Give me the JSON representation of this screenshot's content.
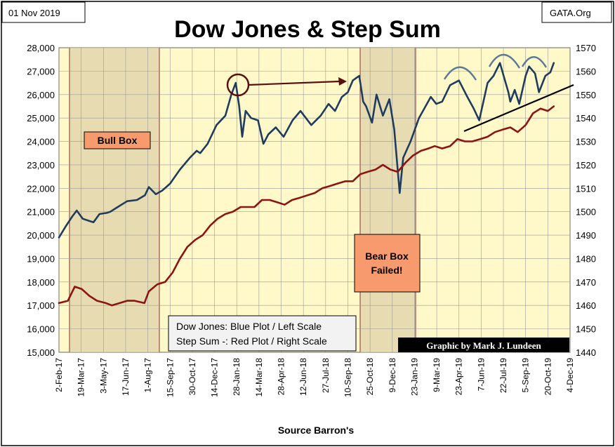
{
  "header": {
    "date": "01 Nov 2019",
    "site": "GATA.Org",
    "title": "Dow Jones & Step Sum"
  },
  "legend_note": [
    "Dow Jones: Blue Plot / Left Scale",
    "Step Sum -: Red Plot / Right Scale"
  ],
  "credit": "Graphic by Mark J. Lundeen",
  "source": "Source Barron's",
  "annotations": {
    "bull_box": "Bull Box",
    "bear_box": [
      "Bear Box",
      "Failed!"
    ]
  },
  "colors": {
    "dow": "#1f3b5e",
    "step_sum": "#8b1414",
    "plot_background": "#fff8c9",
    "box_shade": "#e6dab0",
    "box_border": "#8b3030",
    "label_fill": "#f79a6e",
    "arc": "#5a7a9a",
    "circle": "#5a0f0f"
  },
  "chart_data": {
    "type": "line",
    "x_tick_labels": [
      "2-Feb-17",
      "19-Mar-17",
      "3-May-17",
      "17-Jun-17",
      "1-Aug-17",
      "15-Sep-17",
      "30-Oct-17",
      "14-Dec-17",
      "28-Jan-18",
      "14-Mar-18",
      "28-Apr-18",
      "12-Jun-18",
      "27-Jul-18",
      "10-Sep-18",
      "25-Oct-18",
      "9-Dec-18",
      "23-Jan-19",
      "9-Mar-19",
      "23-Apr-19",
      "7-Jun-19",
      "22-Jul-19",
      "5-Sep-19",
      "20-Oct-19",
      "4-Dec-19"
    ],
    "left_axis": {
      "ylim": [
        15000,
        28000
      ],
      "step": 1000,
      "ticks": [
        "15,000",
        "16,000",
        "17,000",
        "18,000",
        "19,000",
        "20,000",
        "21,000",
        "22,000",
        "23,000",
        "24,000",
        "25,000",
        "26,000",
        "27,000",
        "28,000"
      ]
    },
    "right_axis": {
      "ylim": [
        1440,
        1570
      ],
      "step": 10,
      "ticks": [
        "1440",
        "1450",
        "1460",
        "1470",
        "1480",
        "1490",
        "1500",
        "1510",
        "1520",
        "1530",
        "1540",
        "1550",
        "1560",
        "1570"
      ]
    },
    "grid": true,
    "series": [
      {
        "axis": "left",
        "x": [
          "2017-02-02",
          "2017-02-15",
          "2017-03-01",
          "2017-03-10",
          "2017-03-22",
          "2017-04-05",
          "2017-04-13",
          "2017-04-25",
          "2017-05-10",
          "2017-05-17",
          "2017-06-01",
          "2017-06-20",
          "2017-07-10",
          "2017-07-26",
          "2017-08-03",
          "2017-08-17",
          "2017-08-30",
          "2017-09-15",
          "2017-10-05",
          "2017-10-25",
          "2017-11-08",
          "2017-11-15",
          "2017-11-30",
          "2017-12-18",
          "2018-01-05",
          "2018-01-17",
          "2018-01-26",
          "2018-02-02",
          "2018-02-08",
          "2018-02-15",
          "2018-02-26",
          "2018-03-12",
          "2018-03-23",
          "2018-04-02",
          "2018-04-17",
          "2018-05-03",
          "2018-05-21",
          "2018-06-06",
          "2018-06-28",
          "2018-07-17",
          "2018-08-02",
          "2018-08-15",
          "2018-08-29",
          "2018-09-10",
          "2018-09-20",
          "2018-10-03",
          "2018-10-11",
          "2018-10-17",
          "2018-10-29",
          "2018-11-07",
          "2018-11-20",
          "2018-12-03",
          "2018-12-13",
          "2018-12-24",
          "2018-12-31",
          "2019-01-15",
          "2019-02-01",
          "2019-02-25",
          "2019-03-08",
          "2019-03-20",
          "2019-04-05",
          "2019-04-23",
          "2019-05-10",
          "2019-05-23",
          "2019-06-03",
          "2019-06-20",
          "2019-07-02",
          "2019-07-15",
          "2019-08-01",
          "2019-08-05",
          "2019-08-14",
          "2019-08-23",
          "2019-09-05",
          "2019-09-12",
          "2019-09-24",
          "2019-10-02",
          "2019-10-15",
          "2019-10-25",
          "2019-11-01"
        ],
        "values": [
          19900,
          20350,
          20800,
          21050,
          20700,
          20600,
          20550,
          20900,
          20950,
          21000,
          21200,
          21450,
          21500,
          21700,
          22050,
          21750,
          21900,
          22200,
          22800,
          23300,
          23600,
          23500,
          23900,
          24700,
          25100,
          26000,
          26500,
          25500,
          24200,
          25300,
          25000,
          24900,
          23900,
          24300,
          24600,
          24200,
          24900,
          25300,
          24700,
          25100,
          25600,
          25300,
          25900,
          26100,
          26600,
          26800,
          25700,
          25500,
          24800,
          26000,
          25100,
          25800,
          24500,
          21800,
          23300,
          24000,
          25000,
          25900,
          25600,
          25700,
          26400,
          26600,
          25900,
          25400,
          24900,
          26500,
          26800,
          27350,
          26100,
          25700,
          26200,
          25600,
          26800,
          27200,
          26900,
          26100,
          26800,
          26950,
          27350
        ]
      },
      {
        "axis": "right",
        "x": [
          "2017-02-02",
          "2017-02-20",
          "2017-03-06",
          "2017-03-20",
          "2017-04-05",
          "2017-04-20",
          "2017-05-08",
          "2017-05-20",
          "2017-06-05",
          "2017-06-20",
          "2017-07-05",
          "2017-07-25",
          "2017-08-03",
          "2017-08-20",
          "2017-09-05",
          "2017-09-20",
          "2017-10-05",
          "2017-10-20",
          "2017-11-05",
          "2017-11-20",
          "2017-12-05",
          "2017-12-20",
          "2018-01-05",
          "2018-01-20",
          "2018-02-05",
          "2018-02-20",
          "2018-03-05",
          "2018-03-20",
          "2018-04-05",
          "2018-04-20",
          "2018-05-05",
          "2018-05-20",
          "2018-06-05",
          "2018-06-20",
          "2018-07-05",
          "2018-07-20",
          "2018-08-05",
          "2018-08-20",
          "2018-09-05",
          "2018-09-20",
          "2018-10-05",
          "2018-10-20",
          "2018-11-05",
          "2018-11-20",
          "2018-12-05",
          "2018-12-20",
          "2019-01-05",
          "2019-01-20",
          "2019-02-05",
          "2019-02-20",
          "2019-03-05",
          "2019-03-20",
          "2019-04-05",
          "2019-04-20",
          "2019-05-05",
          "2019-05-20",
          "2019-06-05",
          "2019-06-20",
          "2019-07-05",
          "2019-07-20",
          "2019-08-05",
          "2019-08-20",
          "2019-09-05",
          "2019-09-20",
          "2019-10-05",
          "2019-10-20",
          "2019-11-01"
        ],
        "values": [
          1461,
          1462,
          1468,
          1467,
          1464,
          1462,
          1461,
          1460,
          1461,
          1462,
          1462,
          1461,
          1466,
          1469,
          1470,
          1474,
          1480,
          1485,
          1488,
          1490,
          1494,
          1497,
          1499,
          1500,
          1502,
          1502,
          1502,
          1505,
          1505,
          1504,
          1503,
          1505,
          1506,
          1507,
          1508,
          1510,
          1511,
          1512,
          1513,
          1513,
          1516,
          1517,
          1518,
          1520,
          1518,
          1517,
          1521,
          1524,
          1526,
          1527,
          1528,
          1527,
          1528,
          1531,
          1530,
          1530,
          1531,
          1532,
          1534,
          1535,
          1536,
          1534,
          1537,
          1542,
          1544,
          1543,
          1545
        ]
      }
    ]
  }
}
